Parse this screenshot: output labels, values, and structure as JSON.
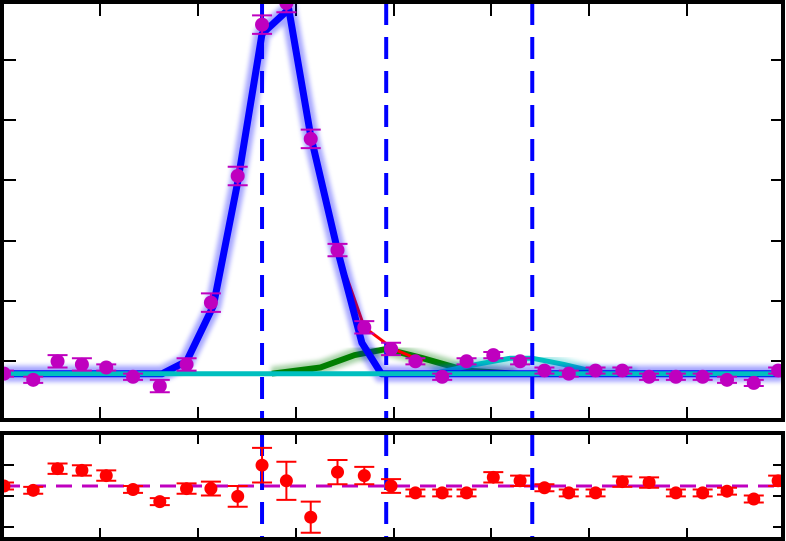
{
  "chart_data": [
    {
      "type": "scatter",
      "panel": "main",
      "grid": false,
      "legend": "none",
      "xlim": [
        0,
        16
      ],
      "ylim": [
        -0.15,
        1.2
      ],
      "colors": {
        "data": "#bf00bf",
        "total_model": "#0000ff",
        "residual_model": "#ff0000",
        "component_2": "#007f00",
        "component_3": "#00bfbf",
        "marker_lines": "#0000ff"
      },
      "vertical_markers": [
        5.3,
        7.85,
        10.85
      ],
      "series": [
        {
          "role": "data",
          "x": [
            0.0,
            0.6,
            1.1,
            1.6,
            2.1,
            2.65,
            3.2,
            3.75,
            4.25,
            4.8,
            5.3,
            5.8,
            6.3,
            6.85,
            7.4,
            7.95,
            8.45,
            9.0,
            9.5,
            10.05,
            10.6,
            11.1,
            11.6,
            12.15,
            12.7,
            13.25,
            13.8,
            14.35,
            14.85,
            15.4,
            15.9
          ],
          "y": [
            0.0,
            -0.02,
            0.04,
            0.03,
            0.02,
            -0.01,
            -0.04,
            0.03,
            0.23,
            0.64,
            1.13,
            1.2,
            0.76,
            0.4,
            0.15,
            0.08,
            0.04,
            -0.01,
            0.04,
            0.06,
            0.04,
            0.01,
            0.0,
            0.01,
            0.01,
            -0.01,
            -0.01,
            -0.01,
            -0.02,
            -0.03,
            0.01
          ],
          "err": [
            0.01,
            0.01,
            0.02,
            0.02,
            0.01,
            0.01,
            0.02,
            0.02,
            0.03,
            0.03,
            0.03,
            0.03,
            0.03,
            0.02,
            0.02,
            0.02,
            0.01,
            0.01,
            0.01,
            0.01,
            0.01,
            0.01,
            0.01,
            0.01,
            0.01,
            0.01,
            0.01,
            0.01,
            0.01,
            0.01,
            0.01
          ]
        },
        {
          "role": "residual_model",
          "x": [
            6.8,
            7.4,
            8.0,
            8.6
          ],
          "y": [
            0.42,
            0.15,
            0.08,
            0.04
          ]
        },
        {
          "role": "total_model",
          "x": [
            0.0,
            2.5,
            3.25,
            3.75,
            4.3,
            4.8,
            5.3,
            5.85,
            6.3,
            6.85,
            7.35,
            7.75,
            8.4,
            9.5,
            10.6,
            12.0,
            16.0
          ],
          "y": [
            0.0,
            0.0,
            0.0,
            0.04,
            0.22,
            0.62,
            1.1,
            1.18,
            0.77,
            0.4,
            0.1,
            0.0,
            0.0,
            0.0,
            0.0,
            0.0,
            0.0
          ]
        },
        {
          "role": "component_2",
          "x": [
            5.5,
            6.5,
            7.2,
            7.85,
            8.6,
            9.5,
            10.5
          ],
          "y": [
            0.0,
            0.02,
            0.06,
            0.08,
            0.05,
            0.01,
            0.0
          ]
        },
        {
          "role": "component_3",
          "x": [
            8.8,
            9.7,
            10.4,
            10.85,
            11.5,
            12.3,
            13.0
          ],
          "y": [
            0.0,
            0.03,
            0.05,
            0.05,
            0.03,
            0.0,
            0.0
          ]
        },
        {
          "role": "baseline",
          "x": [
            0,
            16
          ],
          "y": [
            0.0,
            0.0
          ]
        }
      ]
    },
    {
      "type": "scatter",
      "panel": "residuals",
      "grid": false,
      "legend": "none",
      "xlim": [
        0,
        16
      ],
      "ylim": [
        -0.06,
        0.06
      ],
      "colors": {
        "points": "#ff0000",
        "zero_line": "#bf00bf",
        "marker_lines": "#0000ff"
      },
      "vertical_markers": [
        5.3,
        7.85,
        10.85
      ],
      "x": [
        0.0,
        0.6,
        1.1,
        1.6,
        2.1,
        2.65,
        3.2,
        3.75,
        4.25,
        4.8,
        5.3,
        5.8,
        6.3,
        6.85,
        7.4,
        7.95,
        8.45,
        9.0,
        9.5,
        10.05,
        10.6,
        11.1,
        11.6,
        12.15,
        12.7,
        13.25,
        13.8,
        14.35,
        14.85,
        15.4,
        15.9
      ],
      "y": [
        0.0,
        -0.005,
        0.02,
        0.018,
        0.012,
        -0.004,
        -0.018,
        -0.003,
        -0.003,
        -0.012,
        0.024,
        0.006,
        -0.036,
        0.016,
        0.012,
        0.0,
        -0.008,
        -0.008,
        -0.008,
        0.01,
        0.006,
        -0.002,
        -0.008,
        -0.008,
        0.005,
        0.004,
        -0.008,
        -0.008,
        -0.006,
        -0.015,
        0.006
      ],
      "err": [
        0.004,
        0.004,
        0.006,
        0.006,
        0.006,
        0.004,
        0.004,
        0.006,
        0.008,
        0.012,
        0.02,
        0.022,
        0.018,
        0.014,
        0.01,
        0.008,
        0.004,
        0.004,
        0.004,
        0.006,
        0.006,
        0.004,
        0.004,
        0.004,
        0.006,
        0.006,
        0.004,
        0.004,
        0.004,
        0.004,
        0.006
      ],
      "zero_line": 0
    }
  ]
}
